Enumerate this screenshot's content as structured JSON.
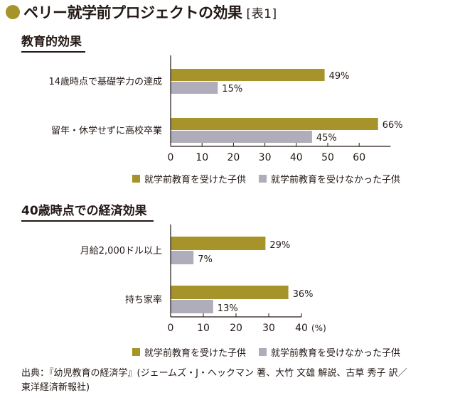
{
  "header": {
    "title": "ペリー就学前プロジェクトの効果",
    "tag": "[表1]"
  },
  "colors": {
    "accent": "#A6932A",
    "series_preschool": "#A6932A",
    "series_no_preschool": "#AEADB9",
    "text": "#231815"
  },
  "source": {
    "line1": "出典：『幼児教育の経済学』(ジェームズ・J・ヘックマン 著、大竹 文雄 解説、古草 秀子 訳／",
    "line2": "東洋経済新報社)"
  },
  "chart_data": [
    {
      "type": "bar",
      "orientation": "horizontal",
      "title": "教育的効果",
      "categories": [
        "14歳時点で基礎学力の達成",
        "留年・休学せずに高校卒業"
      ],
      "series": [
        {
          "name": "就学前教育を受けた子供",
          "values": [
            49,
            66
          ],
          "labels": [
            "49%",
            "66%"
          ],
          "color": "#A6932A"
        },
        {
          "name": "就学前教育を受けなかった子供",
          "values": [
            15,
            45
          ],
          "labels": [
            "15%",
            "45%"
          ],
          "color": "#AEADB9"
        }
      ],
      "xlim": [
        0,
        70
      ],
      "xticks": [
        0,
        10,
        20,
        30,
        40,
        50,
        60
      ],
      "xtick_labels": [
        "0",
        "10",
        "20",
        "30",
        "40",
        "50",
        "60"
      ],
      "unit_label": "",
      "grid": false,
      "legend_position": "bottom"
    },
    {
      "type": "bar",
      "orientation": "horizontal",
      "title": "40歳時点での経済効果",
      "categories": [
        "月給2,000ドル以上",
        "持ち家率"
      ],
      "series": [
        {
          "name": "就学前教育を受けた子供",
          "values": [
            29,
            36
          ],
          "labels": [
            "29%",
            "36%"
          ],
          "color": "#A6932A"
        },
        {
          "name": "就学前教育を受けなかった子供",
          "values": [
            7,
            13
          ],
          "labels": [
            "7%",
            "13%"
          ],
          "color": "#AEADB9"
        }
      ],
      "xlim": [
        0,
        40
      ],
      "xticks": [
        0,
        10,
        20,
        30,
        40
      ],
      "xtick_labels": [
        "0",
        "10",
        "20",
        "30",
        "40"
      ],
      "unit_label": "(%)",
      "grid": false,
      "legend_position": "bottom"
    }
  ]
}
